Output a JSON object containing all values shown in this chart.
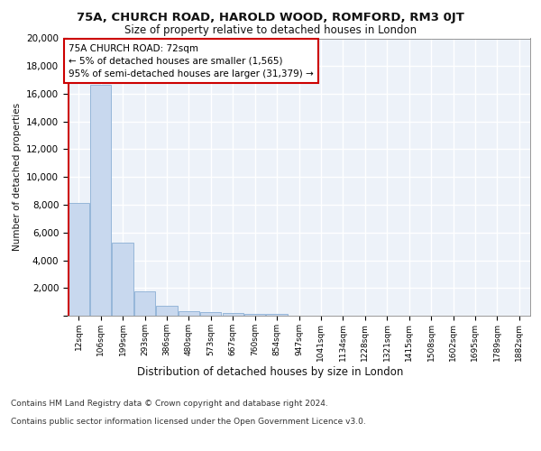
{
  "title1": "75A, CHURCH ROAD, HAROLD WOOD, ROMFORD, RM3 0JT",
  "title2": "Size of property relative to detached houses in London",
  "xlabel": "Distribution of detached houses by size in London",
  "ylabel": "Number of detached properties",
  "categories": [
    "12sqm",
    "106sqm",
    "199sqm",
    "293sqm",
    "386sqm",
    "480sqm",
    "573sqm",
    "667sqm",
    "760sqm",
    "854sqm",
    "947sqm",
    "1041sqm",
    "1134sqm",
    "1228sqm",
    "1321sqm",
    "1415sqm",
    "1508sqm",
    "1602sqm",
    "1695sqm",
    "1789sqm",
    "1882sqm"
  ],
  "values": [
    8150,
    16650,
    5300,
    1750,
    700,
    350,
    250,
    200,
    150,
    150,
    0,
    0,
    0,
    0,
    0,
    0,
    0,
    0,
    0,
    0,
    0
  ],
  "bar_color": "#c8d8ee",
  "bar_edge_color": "#8aafd4",
  "annotation_title": "75A CHURCH ROAD: 72sqm",
  "annotation_line1": "← 5% of detached houses are smaller (1,565)",
  "annotation_line2": "95% of semi-detached houses are larger (31,379) →",
  "annotation_box_color": "#ffffff",
  "annotation_box_edge": "#cc0000",
  "property_line_color": "#cc0000",
  "ylim": [
    0,
    20000
  ],
  "yticks": [
    0,
    2000,
    4000,
    6000,
    8000,
    10000,
    12000,
    14000,
    16000,
    18000,
    20000
  ],
  "footer1": "Contains HM Land Registry data © Crown copyright and database right 2024.",
  "footer2": "Contains public sector information licensed under the Open Government Licence v3.0.",
  "background_color": "#edf2f9",
  "grid_color": "#ffffff"
}
